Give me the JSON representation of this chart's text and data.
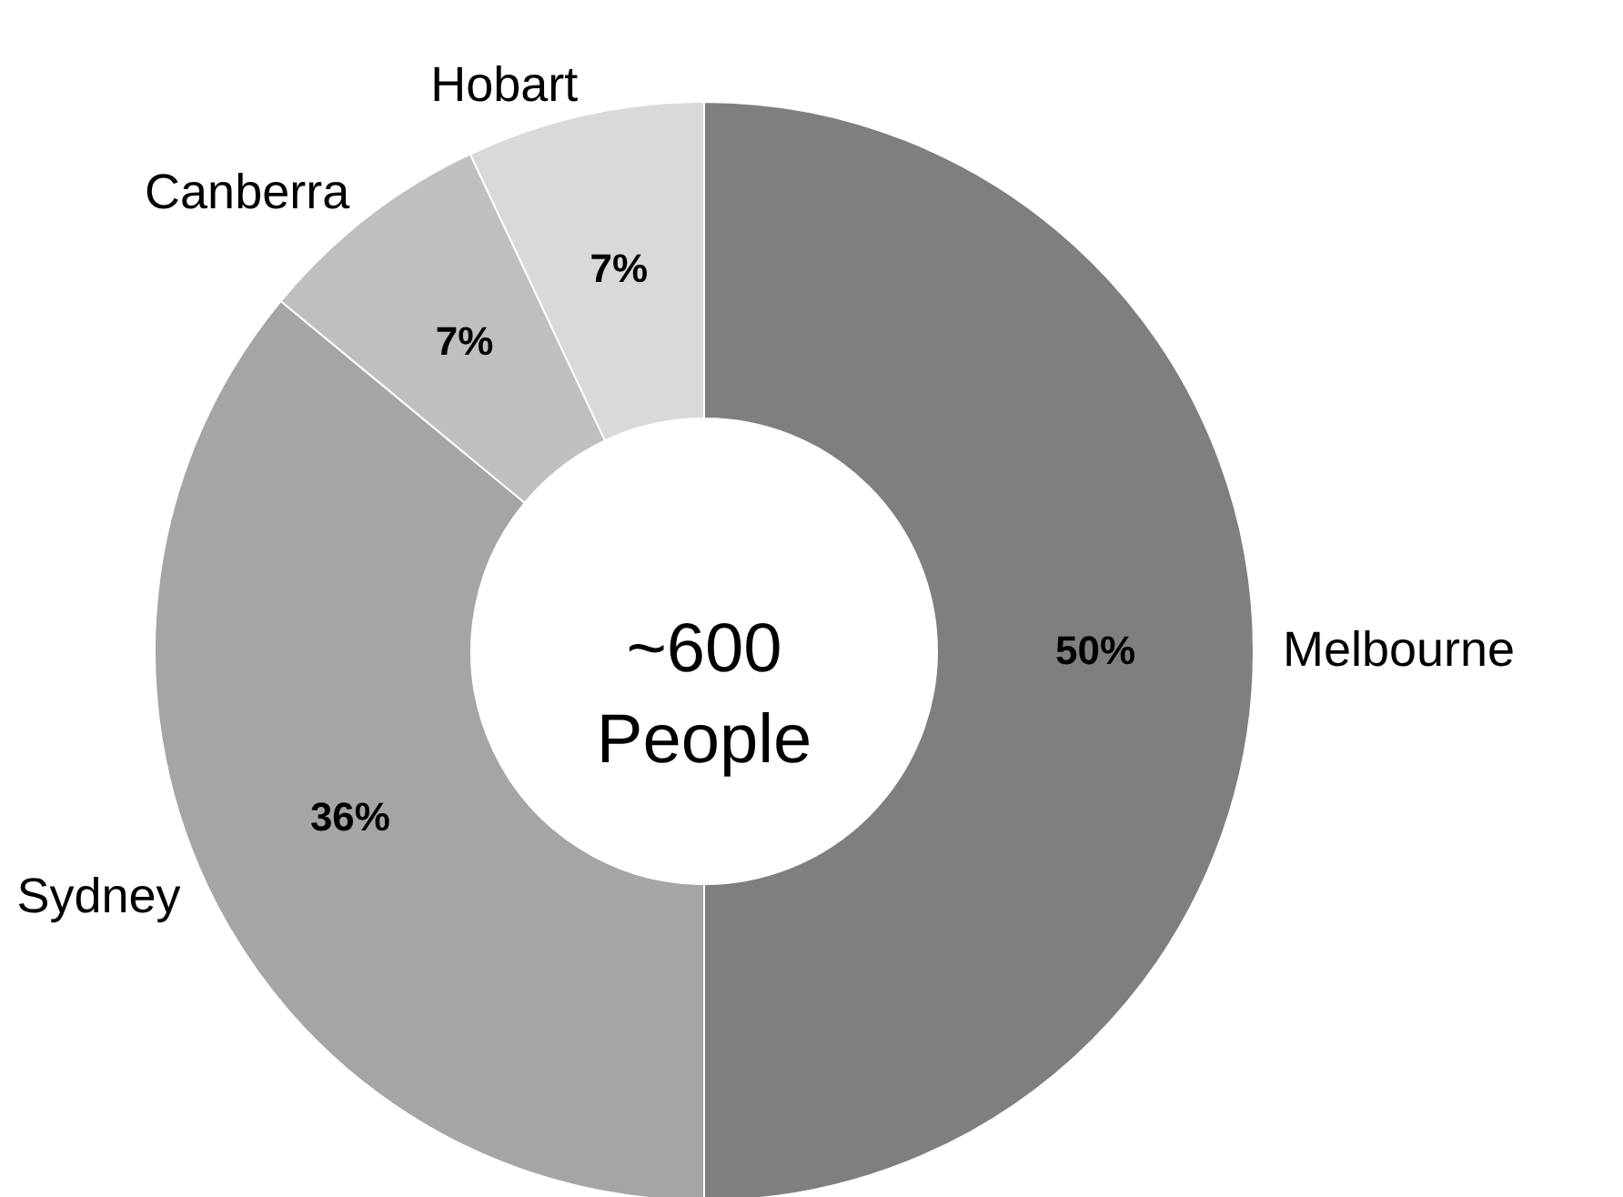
{
  "chart_data": {
    "type": "donut",
    "categories": [
      "Melbourne",
      "Sydney",
      "Canberra",
      "Hobart"
    ],
    "values": [
      50,
      36,
      7,
      7
    ],
    "colors": [
      "#7f7f7f",
      "#a5a5a5",
      "#bfbfbf",
      "#d9d9d9"
    ],
    "value_labels": [
      "50%",
      "36%",
      "7%",
      "7%"
    ],
    "annotations": [
      "~600 People"
    ]
  }
}
